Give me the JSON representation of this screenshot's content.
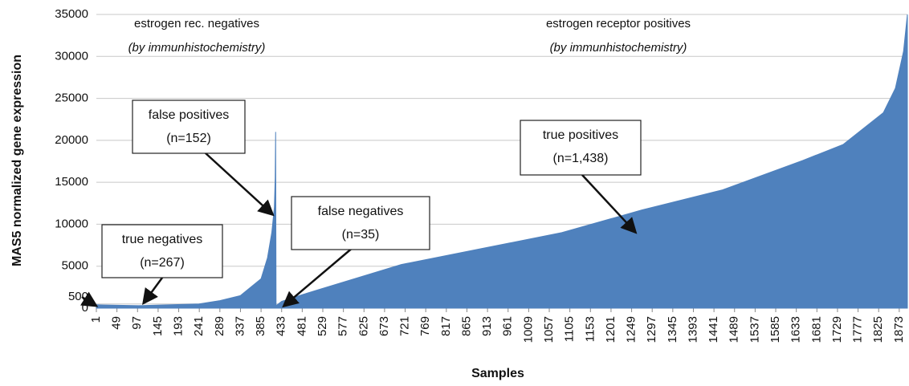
{
  "chart_data": {
    "type": "area",
    "y_label": "MAS5 normalized gene expression",
    "x_label": "Samples",
    "color": "#4f81bd",
    "grid": true,
    "xlim": [
      1,
      1892
    ],
    "ylim": [
      0,
      35000
    ],
    "yticks": [
      0,
      500,
      5000,
      10000,
      15000,
      20000,
      25000,
      30000,
      35000
    ],
    "xticks": [
      1,
      49,
      97,
      145,
      193,
      241,
      289,
      337,
      385,
      433,
      481,
      529,
      577,
      625,
      673,
      721,
      769,
      817,
      865,
      913,
      961,
      1009,
      1057,
      1105,
      1153,
      1201,
      1249,
      1297,
      1345,
      1393,
      1441,
      1489,
      1537,
      1585,
      1633,
      1681,
      1729,
      1777,
      1825,
      1873
    ],
    "series": [
      {
        "name": "MAS5 normalized gene expression",
        "x": [
          1,
          100,
          240,
          289,
          337,
          385,
          400,
          410,
          416,
          418,
          419,
          420,
          433,
          481,
          525,
          712,
          899,
          1086,
          1273,
          1461,
          1648,
          1742,
          1836,
          1864,
          1883,
          1892
        ],
        "values": [
          400,
          300,
          500,
          900,
          1500,
          3500,
          6000,
          9000,
          12000,
          15500,
          21000,
          300,
          800,
          1600,
          2300,
          5200,
          7100,
          9000,
          11700,
          14100,
          17600,
          19500,
          23300,
          26200,
          30600,
          35000
        ]
      }
    ],
    "group_labels": [
      {
        "text": "estrogen rec. negatives",
        "note": "(by immunhistochemistry)"
      },
      {
        "text": "estrogen receptor positives",
        "note": "(by immunhistochemistry)"
      }
    ],
    "annotations": [
      {
        "lines": [
          "false positives",
          "(n=152)"
        ]
      },
      {
        "lines": [
          "true negatives",
          "(n=267)"
        ]
      },
      {
        "lines": [
          "false negatives",
          "(n=35)"
        ]
      },
      {
        "lines": [
          "true positives",
          "(n=1,438)"
        ]
      }
    ]
  }
}
